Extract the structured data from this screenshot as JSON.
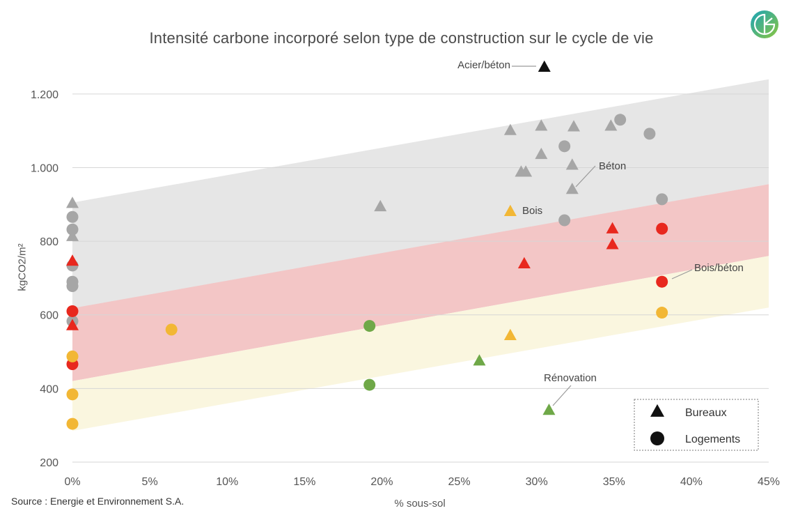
{
  "chart_data": {
    "type": "scatter",
    "title": "Intensité carbone incorporé selon type de construction sur le cycle de vie",
    "xlabel": "% sous-sol",
    "ylabel": "kgCO2/m²",
    "xlim": [
      0,
      45
    ],
    "ylim": [
      200,
      1300
    ],
    "x_ticks": [
      "0%",
      "5%",
      "10%",
      "15%",
      "20%",
      "25%",
      "30%",
      "35%",
      "40%",
      "45%"
    ],
    "y_ticks": [
      "200",
      "400",
      "600",
      "800",
      "1.000",
      "1.200"
    ],
    "grid": "horizontal",
    "legend_position": "bottom-right",
    "legend": [
      {
        "marker": "triangle",
        "label": "Bureaux"
      },
      {
        "marker": "circle",
        "label": "Logements"
      }
    ],
    "bands": [
      {
        "name": "Béton",
        "color": "#e6e6e6",
        "lower": [
          [
            0,
            615
          ],
          [
            45,
            955
          ]
        ],
        "upper": [
          [
            0,
            905
          ],
          [
            45,
            1240
          ]
        ]
      },
      {
        "name": "Bois/béton",
        "color": "#f3c6c6",
        "lower": [
          [
            0,
            420
          ],
          [
            45,
            760
          ]
        ],
        "upper": [
          [
            0,
            618
          ],
          [
            45,
            955
          ]
        ]
      },
      {
        "name": "Bois",
        "color": "#faf6df",
        "lower": [
          [
            0,
            285
          ],
          [
            45,
            620
          ]
        ],
        "upper": [
          [
            0,
            420
          ],
          [
            45,
            760
          ]
        ]
      }
    ],
    "annotations": [
      {
        "text": "Acier/béton",
        "x": 30.5,
        "y": 1270
      },
      {
        "text": "Béton",
        "x": 32.3,
        "y": 940
      },
      {
        "text": "Bois",
        "x": 28.3,
        "y": 880
      },
      {
        "text": "Bois/béton",
        "x": 38,
        "y": 690
      },
      {
        "text": "Rénovation",
        "x": 30.8,
        "y": 340
      }
    ],
    "series": [
      {
        "category": "Acier/béton",
        "color": "#111111",
        "triangles": [
          [
            30.5,
            1272
          ]
        ],
        "circles": []
      },
      {
        "category": "Béton",
        "color": "#a6a6a6",
        "triangles": [
          [
            0,
            902
          ],
          [
            0,
            812
          ],
          [
            19.9,
            893
          ],
          [
            28.3,
            1100
          ],
          [
            30.3,
            1112
          ],
          [
            32.4,
            1110
          ],
          [
            30.3,
            1035
          ],
          [
            29.0,
            987
          ],
          [
            29.3,
            987
          ],
          [
            32.3,
            1006
          ],
          [
            32.3,
            940
          ],
          [
            34.8,
            1112
          ]
        ],
        "circles": [
          [
            0,
            866
          ],
          [
            0,
            832
          ],
          [
            0,
            734
          ],
          [
            0,
            690
          ],
          [
            0,
            678
          ],
          [
            0,
            583
          ],
          [
            31.8,
            1058
          ],
          [
            35.4,
            1130
          ],
          [
            37.3,
            1092
          ],
          [
            31.8,
            857
          ],
          [
            38.1,
            914
          ]
        ]
      },
      {
        "category": "Bois/béton",
        "color": "#e8281e",
        "triangles": [
          [
            0,
            745
          ],
          [
            0,
            570
          ],
          [
            29.2,
            738
          ],
          [
            34.9,
            833
          ],
          [
            34.9,
            790
          ]
        ],
        "circles": [
          [
            0,
            610
          ],
          [
            0,
            466
          ],
          [
            38.1,
            834
          ],
          [
            38.1,
            690
          ]
        ]
      },
      {
        "category": "Bois",
        "color": "#f2b735",
        "triangles": [
          [
            28.3,
            880
          ],
          [
            28.3,
            543
          ]
        ],
        "circles": [
          [
            0,
            487
          ],
          [
            0,
            384
          ],
          [
            0,
            304
          ],
          [
            6.4,
            560
          ],
          [
            38.1,
            606
          ]
        ]
      },
      {
        "category": "Rénovation",
        "color": "#6fa848",
        "triangles": [
          [
            26.3,
            474
          ],
          [
            30.8,
            340
          ]
        ],
        "circles": [
          [
            19.2,
            570
          ],
          [
            19.2,
            410
          ]
        ]
      }
    ]
  },
  "source": "Source : Energie et Environnement S.A."
}
